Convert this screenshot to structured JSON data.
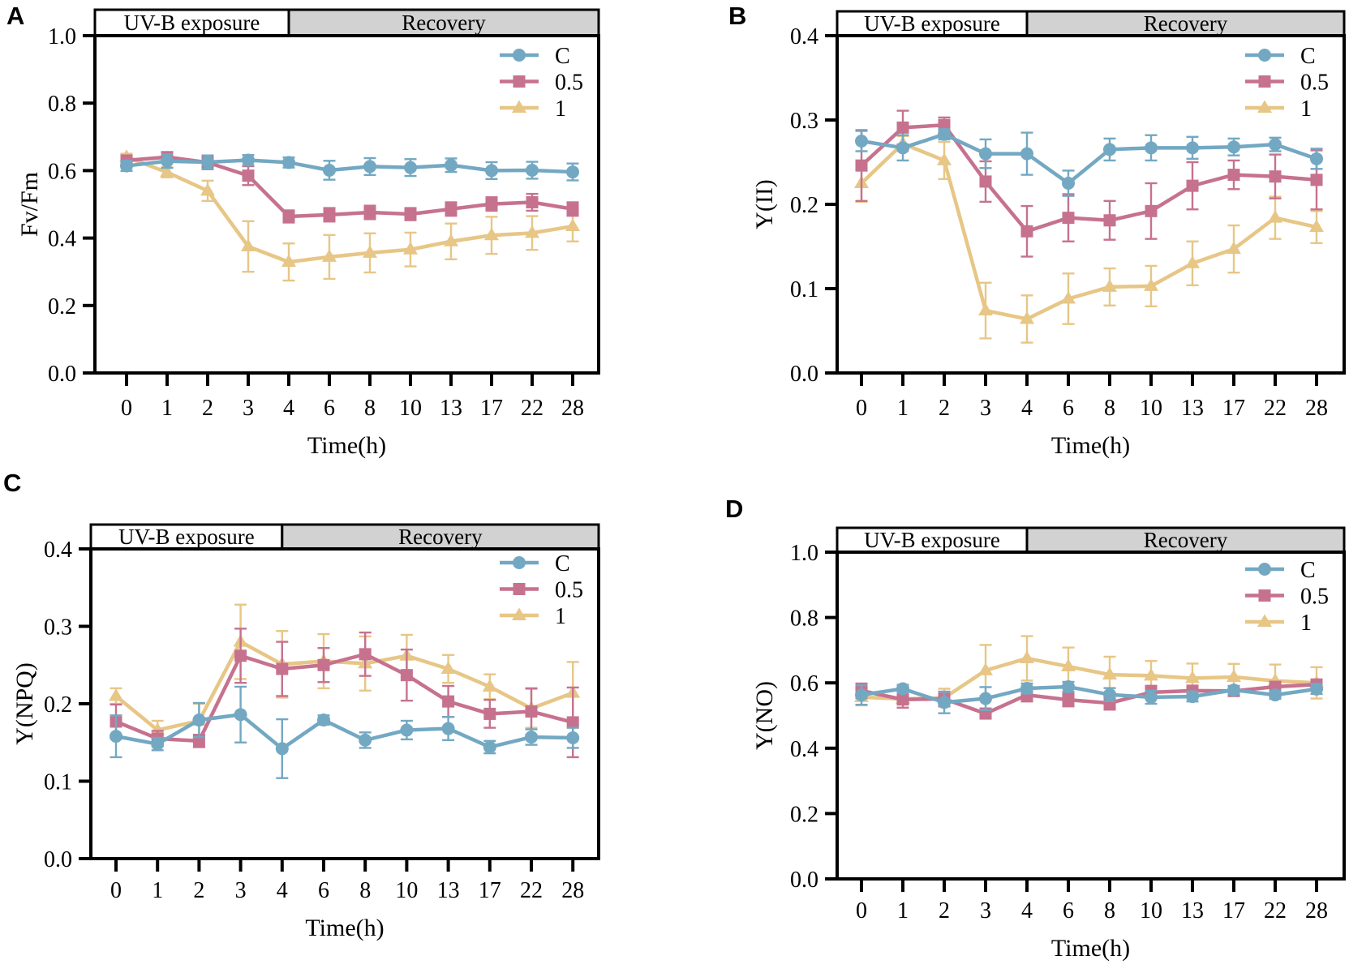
{
  "figure": {
    "background": "#FFFFFF",
    "frame_color": "#000000",
    "phase_bar_gray": "#D2D2D2",
    "phase_bar_white": "#FFFFFF",
    "x_axis_label": "Time(h)",
    "x_categories": [
      "0",
      "1",
      "2",
      "3",
      "4",
      "6",
      "8",
      "10",
      "13",
      "17",
      "22",
      "28"
    ],
    "legend_labels": [
      "C",
      "0.5",
      "1"
    ],
    "series_colors": {
      "C": "#73A8C3",
      "0.5": "#C6728F",
      "1": "#E7C686"
    }
  },
  "chart_data": [
    {
      "panel": "A",
      "type": "line",
      "title": "",
      "ylabel": "Fv/Fm",
      "xlabel": "Time(h)",
      "ylim": [
        0,
        1.0
      ],
      "ytick_step": 0.2,
      "grid": false,
      "legend_position": "top-right-inside",
      "phase_labels": [
        "UV-B exposure",
        "Recovery"
      ],
      "phase_divider_at": "4",
      "categories": [
        "0",
        "1",
        "2",
        "3",
        "4",
        "6",
        "8",
        "10",
        "13",
        "17",
        "22",
        "28"
      ],
      "series": [
        {
          "name": "C",
          "marker": "circle",
          "color": "#73A8C3",
          "values": [
            0.614,
            0.628,
            0.625,
            0.631,
            0.624,
            0.601,
            0.612,
            0.609,
            0.616,
            0.6,
            0.601,
            0.596
          ],
          "errors": [
            0.015,
            0.02,
            0.02,
            0.015,
            0.015,
            0.028,
            0.025,
            0.025,
            0.02,
            0.025,
            0.025,
            0.025
          ]
        },
        {
          "name": "0.5",
          "marker": "square",
          "color": "#C6728F",
          "values": [
            0.63,
            0.64,
            0.624,
            0.585,
            0.464,
            0.469,
            0.476,
            0.471,
            0.486,
            0.501,
            0.506,
            0.486
          ],
          "errors": [
            0.012,
            0.012,
            0.02,
            0.028,
            0.018,
            0.02,
            0.02,
            0.018,
            0.02,
            0.02,
            0.025,
            0.02
          ]
        },
        {
          "name": "1",
          "marker": "triangle",
          "color": "#E7C686",
          "values": [
            0.64,
            0.595,
            0.54,
            0.375,
            0.329,
            0.344,
            0.356,
            0.366,
            0.39,
            0.408,
            0.415,
            0.435
          ],
          "errors": [
            0.01,
            0.015,
            0.03,
            0.075,
            0.055,
            0.065,
            0.058,
            0.05,
            0.053,
            0.055,
            0.05,
            0.045
          ]
        }
      ]
    },
    {
      "panel": "B",
      "type": "line",
      "title": "",
      "ylabel": "Y(II)",
      "xlabel": "Time(h)",
      "ylim": [
        0,
        0.4
      ],
      "ytick_step": 0.1,
      "grid": false,
      "legend_position": "top-right-inside",
      "phase_labels": [
        "UV-B exposure",
        "Recovery"
      ],
      "phase_divider_at": "4",
      "categories": [
        "0",
        "1",
        "2",
        "3",
        "4",
        "6",
        "8",
        "10",
        "13",
        "17",
        "22",
        "28"
      ],
      "series": [
        {
          "name": "C",
          "marker": "circle",
          "color": "#73A8C3",
          "values": [
            0.275,
            0.267,
            0.283,
            0.26,
            0.26,
            0.225,
            0.265,
            0.267,
            0.267,
            0.268,
            0.271,
            0.254
          ],
          "errors": [
            0.012,
            0.015,
            0.006,
            0.017,
            0.025,
            0.015,
            0.013,
            0.015,
            0.013,
            0.01,
            0.008,
            0.012
          ]
        },
        {
          "name": "0.5",
          "marker": "square",
          "color": "#C6728F",
          "values": [
            0.246,
            0.291,
            0.294,
            0.227,
            0.168,
            0.184,
            0.181,
            0.192,
            0.222,
            0.235,
            0.233,
            0.229
          ],
          "errors": [
            0.042,
            0.02,
            0.009,
            0.024,
            0.03,
            0.028,
            0.023,
            0.033,
            0.028,
            0.017,
            0.026,
            0.035
          ]
        },
        {
          "name": "1",
          "marker": "triangle",
          "color": "#E7C686",
          "values": [
            0.225,
            0.272,
            0.252,
            0.074,
            0.064,
            0.088,
            0.102,
            0.103,
            0.13,
            0.147,
            0.184,
            0.173
          ],
          "errors": [
            0.022,
            0.009,
            0.022,
            0.033,
            0.028,
            0.03,
            0.022,
            0.024,
            0.026,
            0.028,
            0.025,
            0.019
          ]
        }
      ]
    },
    {
      "panel": "C",
      "type": "line",
      "title": "",
      "ylabel": "Y(NPQ)",
      "xlabel": "Time(h)",
      "ylim": [
        0,
        0.4
      ],
      "ytick_step": 0.1,
      "grid": false,
      "legend_position": "top-right-inside",
      "phase_labels": [
        "UV-B exposure",
        "Recovery"
      ],
      "phase_divider_at": "4",
      "categories": [
        "0",
        "1",
        "2",
        "3",
        "4",
        "6",
        "8",
        "10",
        "13",
        "17",
        "22",
        "28"
      ],
      "series": [
        {
          "name": "C",
          "marker": "circle",
          "color": "#73A8C3",
          "values": [
            0.158,
            0.148,
            0.179,
            0.186,
            0.142,
            0.179,
            0.153,
            0.166,
            0.168,
            0.144,
            0.157,
            0.156
          ],
          "errors": [
            0.027,
            0.008,
            0.022,
            0.036,
            0.038,
            0.006,
            0.01,
            0.012,
            0.015,
            0.008,
            0.01,
            0.013
          ]
        },
        {
          "name": "0.5",
          "marker": "square",
          "color": "#C6728F",
          "values": [
            0.177,
            0.155,
            0.152,
            0.262,
            0.245,
            0.25,
            0.264,
            0.237,
            0.203,
            0.187,
            0.19,
            0.176
          ],
          "errors": [
            0.022,
            0.01,
            0.008,
            0.035,
            0.035,
            0.022,
            0.028,
            0.033,
            0.02,
            0.018,
            0.03,
            0.045
          ]
        },
        {
          "name": "1",
          "marker": "triangle",
          "color": "#E7C686",
          "values": [
            0.21,
            0.166,
            0.178,
            0.28,
            0.251,
            0.255,
            0.252,
            0.262,
            0.245,
            0.222,
            0.194,
            0.214
          ],
          "errors": [
            0.01,
            0.012,
            0.022,
            0.048,
            0.043,
            0.035,
            0.035,
            0.027,
            0.018,
            0.016,
            0.025,
            0.04
          ]
        }
      ]
    },
    {
      "panel": "D",
      "type": "line",
      "title": "",
      "ylabel": "Y(NO)",
      "xlabel": "Time(h)",
      "ylim": [
        0,
        1.0
      ],
      "ytick_step": 0.2,
      "grid": false,
      "legend_position": "top-right-inside",
      "phase_labels": [
        "UV-B exposure",
        "Recovery"
      ],
      "phase_divider_at": "4",
      "categories": [
        "0",
        "1",
        "2",
        "3",
        "4",
        "6",
        "8",
        "10",
        "13",
        "17",
        "22",
        "28"
      ],
      "series": [
        {
          "name": "C",
          "marker": "circle",
          "color": "#73A8C3",
          "values": [
            0.563,
            0.582,
            0.54,
            0.552,
            0.583,
            0.588,
            0.564,
            0.556,
            0.558,
            0.578,
            0.563,
            0.581
          ],
          "errors": [
            0.03,
            0.012,
            0.033,
            0.035,
            0.015,
            0.015,
            0.02,
            0.02,
            0.015,
            0.012,
            0.012,
            0.015
          ]
        },
        {
          "name": "0.5",
          "marker": "square",
          "color": "#C6728F",
          "values": [
            0.576,
            0.549,
            0.551,
            0.506,
            0.563,
            0.548,
            0.538,
            0.571,
            0.576,
            0.575,
            0.588,
            0.595
          ],
          "errors": [
            0.022,
            0.025,
            0.022,
            0.015,
            0.02,
            0.02,
            0.02,
            0.02,
            0.015,
            0.012,
            0.012,
            0.015
          ]
        },
        {
          "name": "1",
          "marker": "triangle",
          "color": "#E7C686",
          "values": [
            0.556,
            0.551,
            0.554,
            0.638,
            0.675,
            0.65,
            0.625,
            0.622,
            0.614,
            0.618,
            0.606,
            0.6
          ],
          "errors": [
            0.025,
            0.012,
            0.028,
            0.078,
            0.068,
            0.058,
            0.055,
            0.045,
            0.045,
            0.04,
            0.05,
            0.048
          ]
        }
      ]
    }
  ]
}
